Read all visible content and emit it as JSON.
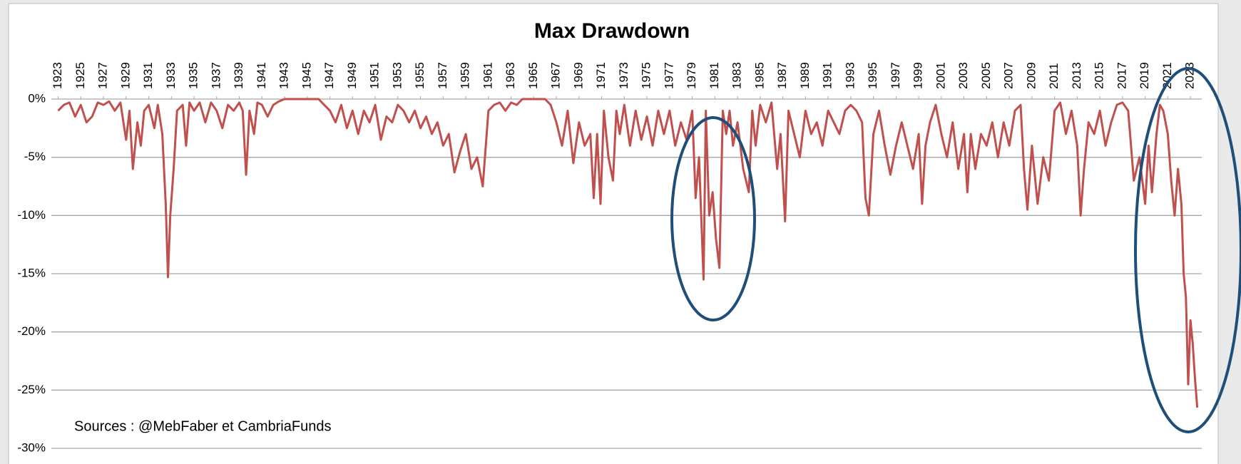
{
  "chart_data": {
    "type": "line",
    "title": "Max Drawdown",
    "annotation": "Sources : @MebFaber et CambriaFunds",
    "x": [
      1923,
      1923.5,
      1924,
      1924.5,
      1925,
      1925.5,
      1926,
      1926.5,
      1927,
      1927.5,
      1928,
      1928.5,
      1929,
      1929.3,
      1929.6,
      1930,
      1930.3,
      1930.6,
      1931,
      1931.5,
      1931.8,
      1932.2,
      1932.5,
      1932.7,
      1932.9,
      1933.2,
      1933.5,
      1934,
      1934.3,
      1934.6,
      1935,
      1935.5,
      1936,
      1936.5,
      1937,
      1937.5,
      1938,
      1938.5,
      1939,
      1939.3,
      1939.6,
      1939.9,
      1940.3,
      1940.6,
      1941,
      1941.5,
      1942,
      1942.5,
      1943,
      1944,
      1945,
      1946,
      1946.5,
      1947,
      1947.5,
      1948,
      1948.5,
      1949,
      1949.5,
      1950,
      1950.5,
      1951,
      1951.5,
      1952,
      1952.5,
      1953,
      1953.5,
      1954,
      1954.5,
      1955,
      1955.5,
      1956,
      1956.5,
      1957,
      1957.5,
      1958,
      1958.5,
      1959,
      1959.5,
      1960,
      1960.5,
      1961,
      1961.5,
      1962,
      1962.5,
      1963,
      1963.5,
      1964,
      1965,
      1966,
      1966.5,
      1967,
      1967.5,
      1968,
      1968.5,
      1969,
      1969.5,
      1970,
      1970.3,
      1970.6,
      1970.9,
      1971.2,
      1971.6,
      1972,
      1972.3,
      1972.6,
      1973,
      1973.5,
      1974,
      1974.5,
      1975,
      1975.5,
      1976,
      1976.5,
      1977,
      1977.5,
      1978,
      1978.5,
      1979,
      1979.3,
      1979.6,
      1980,
      1980.2,
      1980.5,
      1980.8,
      1981.1,
      1981.4,
      1981.7,
      1982,
      1982.3,
      1982.6,
      1983,
      1983.5,
      1984,
      1984.3,
      1984.6,
      1985,
      1985.5,
      1986,
      1986.5,
      1986.8,
      1987.2,
      1987.5,
      1988,
      1988.5,
      1989,
      1989.5,
      1990,
      1990.5,
      1991,
      1991.5,
      1992,
      1992.5,
      1993,
      1993.5,
      1994,
      1994.3,
      1994.6,
      1995,
      1995.5,
      1996,
      1996.5,
      1997,
      1997.5,
      1998,
      1998.5,
      1999,
      1999.3,
      1999.6,
      2000,
      2000.5,
      2001,
      2001.5,
      2002,
      2002.5,
      2003,
      2003.3,
      2003.6,
      2004,
      2004.5,
      2005,
      2005.5,
      2006,
      2006.5,
      2007,
      2007.5,
      2008,
      2008.3,
      2008.6,
      2009,
      2009.5,
      2010,
      2010.5,
      2011,
      2011.5,
      2012,
      2012.5,
      2013,
      2013.3,
      2013.6,
      2014,
      2014.5,
      2015,
      2015.5,
      2016,
      2016.5,
      2017,
      2017.5,
      2018,
      2018.5,
      2019,
      2019.3,
      2019.6,
      2020,
      2020.3,
      2020.6,
      2021,
      2021.3,
      2021.6,
      2021.9,
      2022.2,
      2022.4,
      2022.6,
      2022.8,
      2023,
      2023.2,
      2023.4,
      2023.6
    ],
    "series": [
      {
        "name": "Max Drawdown",
        "color": "#c0504d",
        "values": [
          -1,
          -0.5,
          -0.3,
          -1.5,
          -0.5,
          -2,
          -1.5,
          -0.3,
          -0.5,
          -0.2,
          -1,
          -0.3,
          -3.5,
          -1,
          -6,
          -2,
          -4,
          -1,
          -0.5,
          -2.5,
          -0.5,
          -3,
          -9,
          -15.3,
          -10,
          -6,
          -1,
          -0.5,
          -4,
          -0.3,
          -1,
          -0.3,
          -2,
          -0.3,
          -1,
          -2.5,
          -0.5,
          -1,
          -0.3,
          -1,
          -6.5,
          -1,
          -3,
          -0.3,
          -0.5,
          -1.5,
          -0.5,
          -0.2,
          0,
          0,
          0,
          0,
          -0.5,
          -1,
          -2,
          -0.5,
          -2.5,
          -1,
          -3,
          -1,
          -2,
          -0.5,
          -3.5,
          -1.5,
          -2,
          -0.5,
          -1,
          -2,
          -1,
          -2.5,
          -1.5,
          -3,
          -2,
          -4,
          -3,
          -6.3,
          -4.5,
          -3,
          -6,
          -5,
          -7.5,
          -1,
          -0.5,
          -0.3,
          -1,
          -0.3,
          -0.5,
          0,
          0,
          0,
          -0.5,
          -2,
          -4,
          -1,
          -5.5,
          -2,
          -4,
          -3,
          -8.5,
          -3,
          -9,
          -1,
          -5,
          -7,
          -1,
          -3,
          -0.5,
          -4,
          -1,
          -3.5,
          -1.5,
          -4,
          -1,
          -3,
          -1,
          -4,
          -2,
          -3.5,
          -1,
          -8.5,
          -5,
          -15.5,
          -1,
          -10,
          -8,
          -12,
          -14.5,
          -1,
          -3,
          -1,
          -4,
          -2,
          -6,
          -8,
          -1,
          -4,
          -0.5,
          -2,
          -0.3,
          -6,
          -3,
          -10.5,
          -1,
          -3,
          -5,
          -1,
          -3,
          -2,
          -4,
          -1,
          -2,
          -3,
          -1,
          -0.5,
          -1,
          -2,
          -8.5,
          -10,
          -3,
          -1,
          -4,
          -6.5,
          -4,
          -2,
          -4,
          -6,
          -3,
          -9,
          -4,
          -2,
          -0.5,
          -3,
          -5,
          -2,
          -6,
          -3,
          -8,
          -3,
          -6,
          -3,
          -4,
          -2,
          -5,
          -2,
          -4,
          -1,
          -0.5,
          -6,
          -9.5,
          -4,
          -9,
          -5,
          -7,
          -1,
          -0.3,
          -3,
          -1,
          -4,
          -10,
          -6,
          -2,
          -3,
          -1,
          -4,
          -2,
          -0.5,
          -0.3,
          -1,
          -7,
          -5,
          -9,
          -4,
          -8,
          -3,
          -0.5,
          -1,
          -3,
          -7,
          -10,
          -6,
          -9,
          -15,
          -17,
          -24.5,
          -19,
          -21,
          -24,
          -26.5
        ]
      }
    ],
    "xlim": [
      1922.4,
      2024
    ],
    "xticks": [
      1923,
      1925,
      1927,
      1929,
      1931,
      1933,
      1935,
      1937,
      1939,
      1941,
      1943,
      1945,
      1947,
      1949,
      1951,
      1953,
      1955,
      1957,
      1959,
      1961,
      1963,
      1965,
      1967,
      1969,
      1971,
      1973,
      1975,
      1977,
      1979,
      1981,
      1983,
      1985,
      1987,
      1989,
      1991,
      1993,
      1995,
      1997,
      1999,
      2001,
      2003,
      2005,
      2007,
      2009,
      2011,
      2013,
      2015,
      2017,
      2019,
      2021,
      2023
    ],
    "ylim": [
      -30,
      0
    ],
    "yticks": [
      {
        "value": 0,
        "label": "0%"
      },
      {
        "value": -5,
        "label": "-5%"
      },
      {
        "value": -10,
        "label": "-10%"
      },
      {
        "value": -15,
        "label": "-15%"
      },
      {
        "value": -20,
        "label": "-20%"
      },
      {
        "value": -25,
        "label": "-25%"
      },
      {
        "value": -30,
        "label": "-30%"
      }
    ],
    "grid": true
  }
}
